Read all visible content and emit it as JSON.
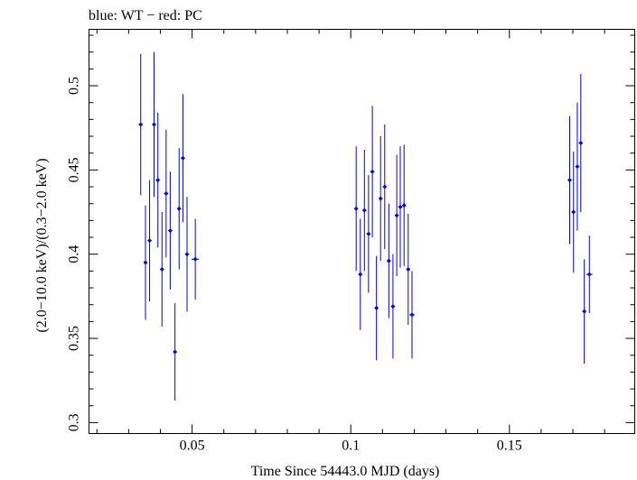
{
  "chart_data": {
    "type": "scatter",
    "title": "blue: WT − red: PC",
    "xlabel": "Time Since 54443.0 MJD (days)",
    "ylabel": "(2.0−10.0 keV)/(0.3−2.0 keV)",
    "xlim": [
      0.0175,
      0.1895
    ],
    "ylim": [
      0.2935,
      0.5335
    ],
    "xticks": [
      0.05,
      0.1,
      0.15
    ],
    "xtick_labels": [
      "0.05",
      "0.1",
      "0.15"
    ],
    "yticks": [
      0.3,
      0.35,
      0.4,
      0.45,
      0.5
    ],
    "ytick_labels": [
      "0.3",
      "0.35",
      "0.4",
      "0.45",
      "0.5"
    ],
    "grid": false,
    "series": [
      {
        "name": "WT",
        "color": "#0000ee",
        "points": [
          {
            "x": 0.0338,
            "y": 0.477,
            "yerr": 0.042
          },
          {
            "x": 0.0353,
            "y": 0.395,
            "yerr": 0.034
          },
          {
            "x": 0.0366,
            "y": 0.408,
            "yerr": 0.036
          },
          {
            "x": 0.038,
            "y": 0.477,
            "yerr": 0.043
          },
          {
            "x": 0.0392,
            "y": 0.444,
            "yerr": 0.04
          },
          {
            "x": 0.0405,
            "y": 0.391,
            "yerr": 0.034
          },
          {
            "x": 0.0418,
            "y": 0.436,
            "yerr": 0.038
          },
          {
            "x": 0.0431,
            "y": 0.414,
            "yerr": 0.035
          },
          {
            "x": 0.0446,
            "y": 0.342,
            "yerr": 0.029
          },
          {
            "x": 0.0459,
            "y": 0.427,
            "yerr": 0.036
          },
          {
            "x": 0.0471,
            "y": 0.457,
            "yerr": 0.038
          },
          {
            "x": 0.0484,
            "y": 0.4,
            "yerr": 0.034
          },
          {
            "x": 0.051,
            "y": 0.397,
            "yerr": 0.024,
            "xerr": 0.0012
          },
          {
            "x": 0.1017,
            "y": 0.427,
            "yerr": 0.037
          },
          {
            "x": 0.103,
            "y": 0.388,
            "yerr": 0.033
          },
          {
            "x": 0.1043,
            "y": 0.426,
            "yerr": 0.036
          },
          {
            "x": 0.1056,
            "y": 0.412,
            "yerr": 0.035
          },
          {
            "x": 0.1068,
            "y": 0.449,
            "yerr": 0.039
          },
          {
            "x": 0.1081,
            "y": 0.368,
            "yerr": 0.031
          },
          {
            "x": 0.1094,
            "y": 0.433,
            "yerr": 0.037
          },
          {
            "x": 0.1107,
            "y": 0.44,
            "yerr": 0.037
          },
          {
            "x": 0.112,
            "y": 0.396,
            "yerr": 0.034
          },
          {
            "x": 0.1133,
            "y": 0.369,
            "yerr": 0.031
          },
          {
            "x": 0.1145,
            "y": 0.423,
            "yerr": 0.036
          },
          {
            "x": 0.1156,
            "y": 0.428,
            "yerr": 0.036
          },
          {
            "x": 0.1168,
            "y": 0.429,
            "yerr": 0.036
          },
          {
            "x": 0.1181,
            "y": 0.391,
            "yerr": 0.033
          },
          {
            "x": 0.1193,
            "y": 0.364,
            "yerr": 0.026,
            "xerr": 0.0008
          },
          {
            "x": 0.169,
            "y": 0.444,
            "yerr": 0.038
          },
          {
            "x": 0.1702,
            "y": 0.425,
            "yerr": 0.036
          },
          {
            "x": 0.1714,
            "y": 0.452,
            "yerr": 0.038
          },
          {
            "x": 0.1725,
            "y": 0.466,
            "yerr": 0.041
          },
          {
            "x": 0.1736,
            "y": 0.366,
            "yerr": 0.031
          },
          {
            "x": 0.1752,
            "y": 0.388,
            "yerr": 0.023,
            "xerr": 0.001
          }
        ]
      }
    ]
  }
}
